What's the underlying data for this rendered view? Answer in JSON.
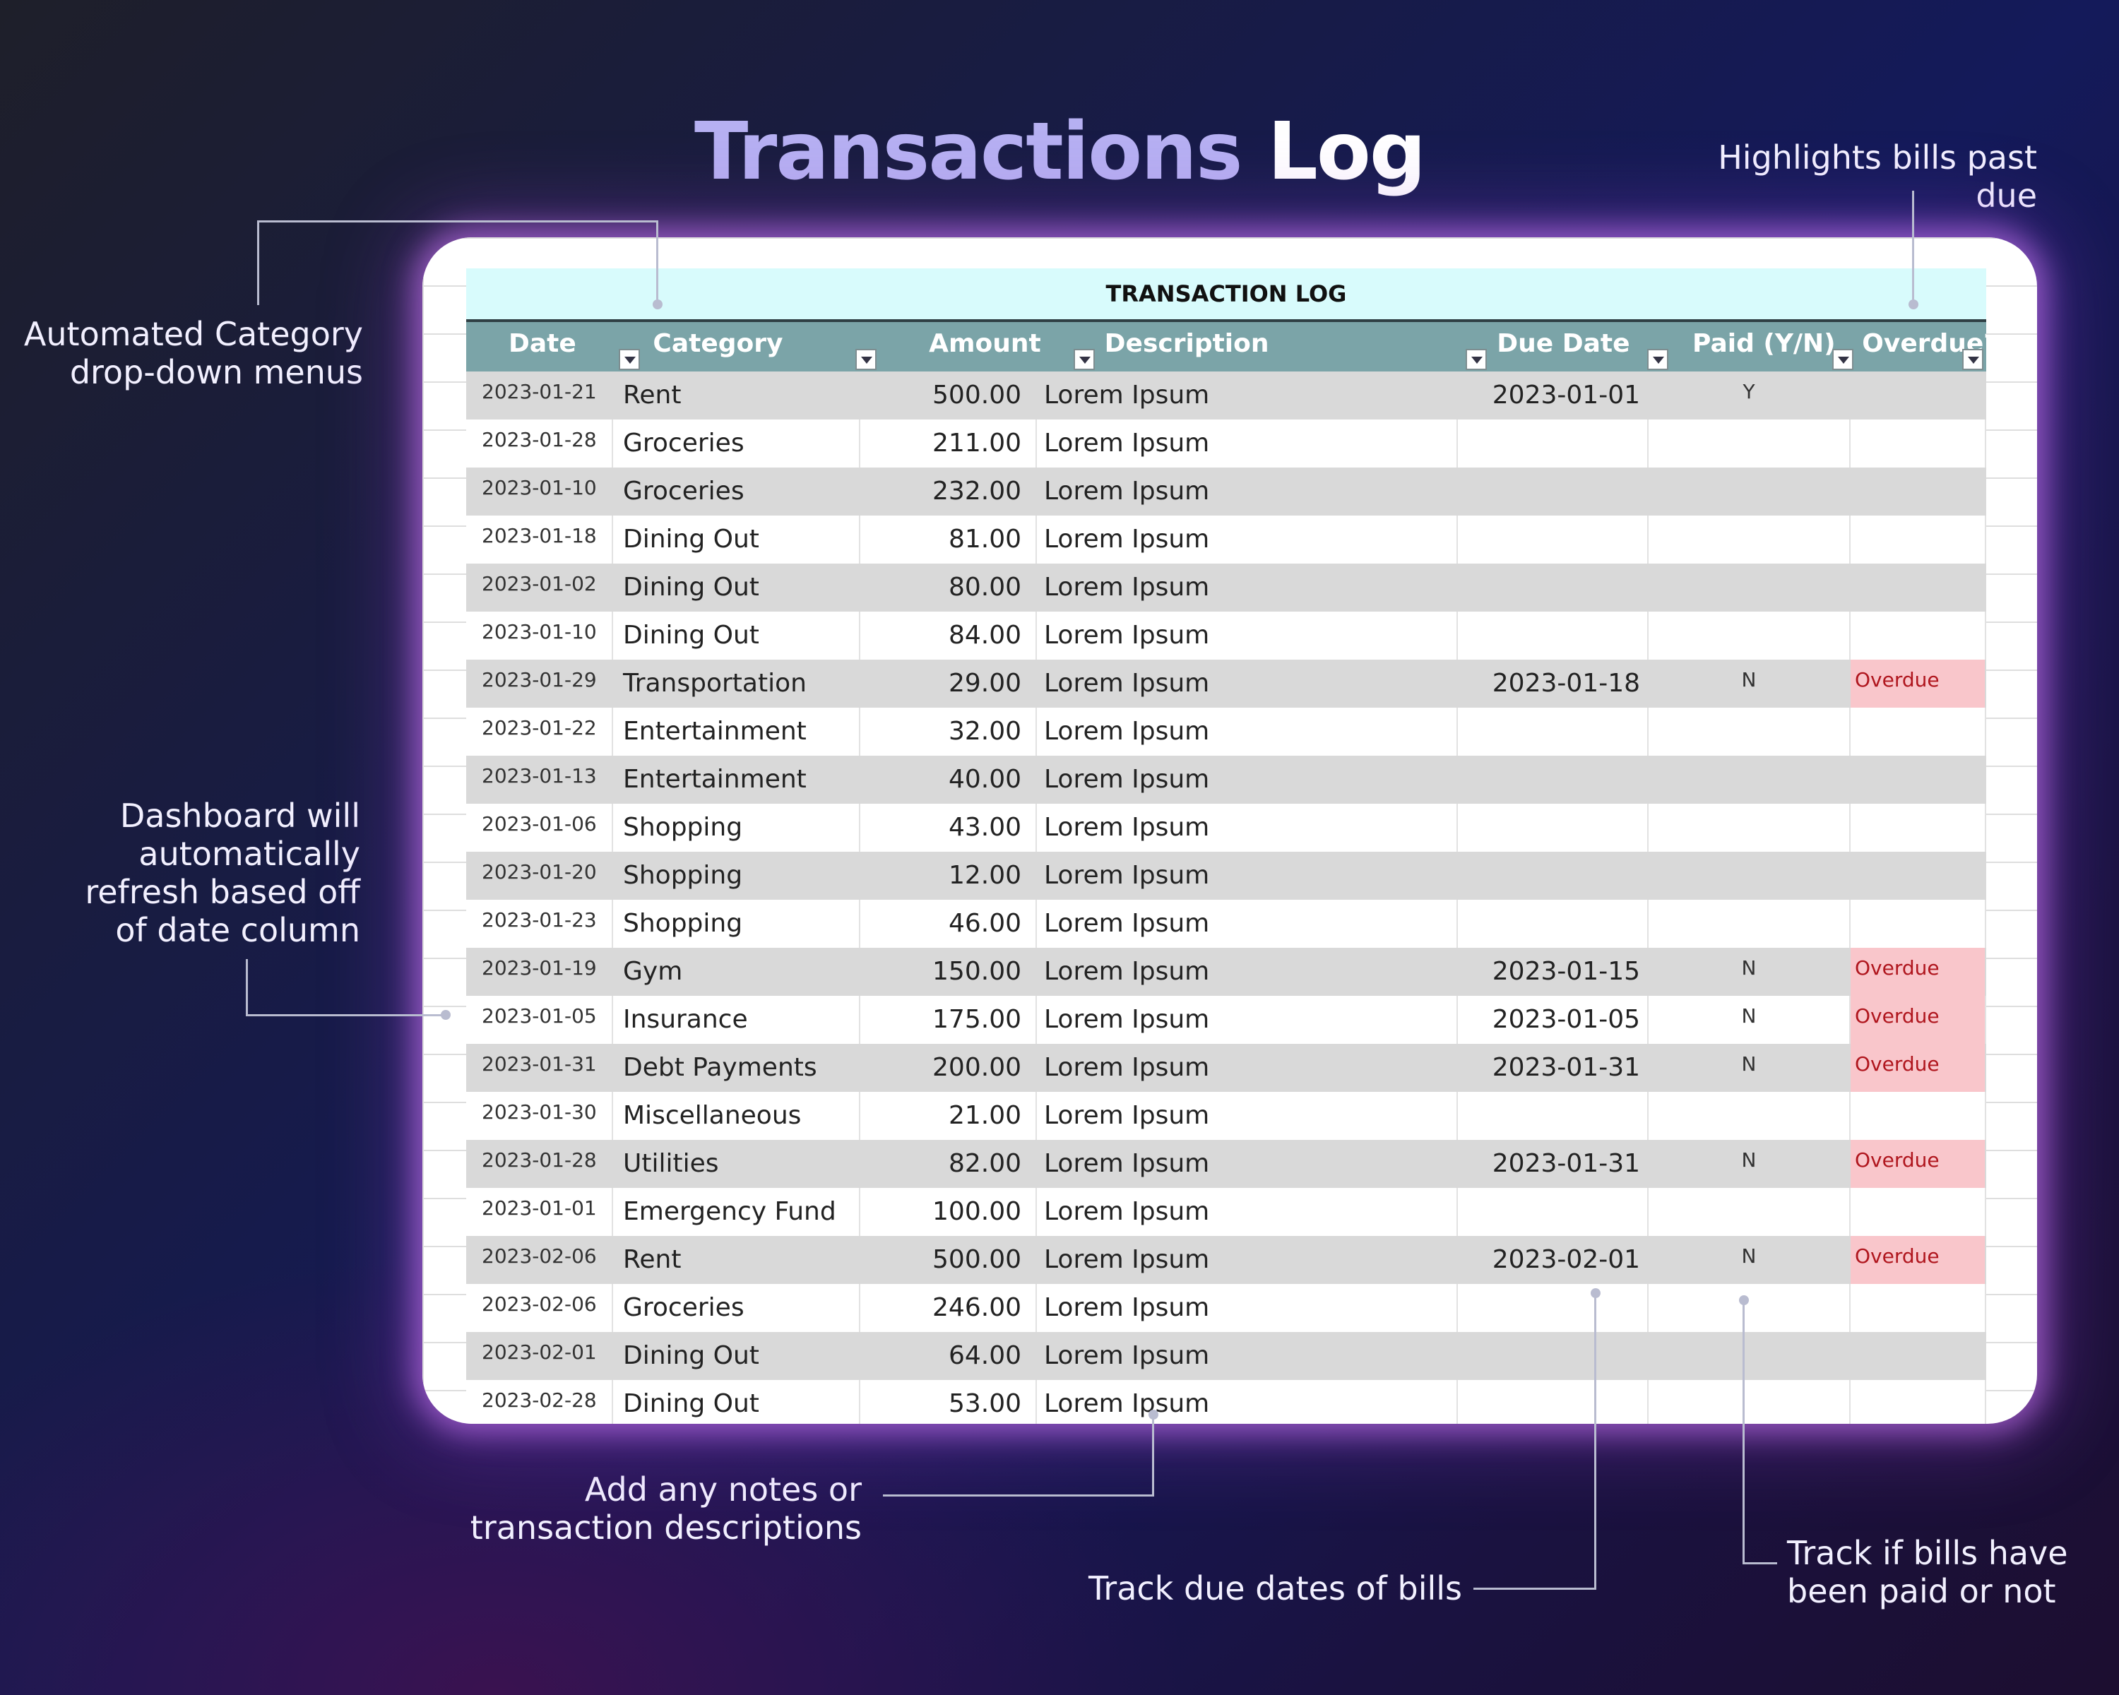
{
  "title": {
    "part1": "Transactions",
    "part2": "Log"
  },
  "sheet": {
    "banner": "TRANSACTION LOG",
    "columns": [
      "Date",
      "Category",
      "Amount",
      "Description",
      "Due Date",
      "Paid (Y/N)",
      "Overdue?"
    ],
    "rows": [
      {
        "date": "2023-01-21",
        "category": "Rent",
        "amount": "500.00",
        "description": "Lorem Ipsum",
        "due": "2023-01-01",
        "paid": "Y",
        "overdue": ""
      },
      {
        "date": "2023-01-28",
        "category": "Groceries",
        "amount": "211.00",
        "description": "Lorem Ipsum",
        "due": "",
        "paid": "",
        "overdue": ""
      },
      {
        "date": "2023-01-10",
        "category": "Groceries",
        "amount": "232.00",
        "description": "Lorem Ipsum",
        "due": "",
        "paid": "",
        "overdue": ""
      },
      {
        "date": "2023-01-18",
        "category": "Dining Out",
        "amount": "81.00",
        "description": "Lorem Ipsum",
        "due": "",
        "paid": "",
        "overdue": ""
      },
      {
        "date": "2023-01-02",
        "category": "Dining Out",
        "amount": "80.00",
        "description": "Lorem Ipsum",
        "due": "",
        "paid": "",
        "overdue": ""
      },
      {
        "date": "2023-01-10",
        "category": "Dining Out",
        "amount": "84.00",
        "description": "Lorem Ipsum",
        "due": "",
        "paid": "",
        "overdue": ""
      },
      {
        "date": "2023-01-29",
        "category": "Transportation",
        "amount": "29.00",
        "description": "Lorem Ipsum",
        "due": "2023-01-18",
        "paid": "N",
        "overdue": "Overdue"
      },
      {
        "date": "2023-01-22",
        "category": "Entertainment",
        "amount": "32.00",
        "description": "Lorem Ipsum",
        "due": "",
        "paid": "",
        "overdue": ""
      },
      {
        "date": "2023-01-13",
        "category": "Entertainment",
        "amount": "40.00",
        "description": "Lorem Ipsum",
        "due": "",
        "paid": "",
        "overdue": ""
      },
      {
        "date": "2023-01-06",
        "category": "Shopping",
        "amount": "43.00",
        "description": "Lorem Ipsum",
        "due": "",
        "paid": "",
        "overdue": ""
      },
      {
        "date": "2023-01-20",
        "category": "Shopping",
        "amount": "12.00",
        "description": "Lorem Ipsum",
        "due": "",
        "paid": "",
        "overdue": ""
      },
      {
        "date": "2023-01-23",
        "category": "Shopping",
        "amount": "46.00",
        "description": "Lorem Ipsum",
        "due": "",
        "paid": "",
        "overdue": ""
      },
      {
        "date": "2023-01-19",
        "category": "Gym",
        "amount": "150.00",
        "description": "Lorem Ipsum",
        "due": "2023-01-15",
        "paid": "N",
        "overdue": "Overdue"
      },
      {
        "date": "2023-01-05",
        "category": "Insurance",
        "amount": "175.00",
        "description": "Lorem Ipsum",
        "due": "2023-01-05",
        "paid": "N",
        "overdue": "Overdue"
      },
      {
        "date": "2023-01-31",
        "category": "Debt Payments",
        "amount": "200.00",
        "description": "Lorem Ipsum",
        "due": "2023-01-31",
        "paid": "N",
        "overdue": "Overdue"
      },
      {
        "date": "2023-01-30",
        "category": "Miscellaneous",
        "amount": "21.00",
        "description": "Lorem Ipsum",
        "due": "",
        "paid": "",
        "overdue": ""
      },
      {
        "date": "2023-01-28",
        "category": "Utilities",
        "amount": "82.00",
        "description": "Lorem Ipsum",
        "due": "2023-01-31",
        "paid": "N",
        "overdue": "Overdue"
      },
      {
        "date": "2023-01-01",
        "category": "Emergency Fund",
        "amount": "100.00",
        "description": "Lorem Ipsum",
        "due": "",
        "paid": "",
        "overdue": ""
      },
      {
        "date": "2023-02-06",
        "category": "Rent",
        "amount": "500.00",
        "description": "Lorem Ipsum",
        "due": "2023-02-01",
        "paid": "N",
        "overdue": "Overdue"
      },
      {
        "date": "2023-02-06",
        "category": "Groceries",
        "amount": "246.00",
        "description": "Lorem Ipsum",
        "due": "",
        "paid": "",
        "overdue": ""
      },
      {
        "date": "2023-02-01",
        "category": "Dining Out",
        "amount": "64.00",
        "description": "Lorem Ipsum",
        "due": "",
        "paid": "",
        "overdue": ""
      },
      {
        "date": "2023-02-28",
        "category": "Dining Out",
        "amount": "53.00",
        "description": "Lorem Ipsum",
        "due": "",
        "paid": "",
        "overdue": ""
      }
    ]
  },
  "annotations": {
    "category": [
      "Automated Category",
      "drop-down menus"
    ],
    "overdue": [
      "Highlights bills past due"
    ],
    "dashboard": [
      "Dashboard will",
      "automatically",
      "refresh based off",
      "of date column"
    ],
    "notes": [
      "Add any notes or",
      "transaction descriptions"
    ],
    "due": [
      "Track due dates of bills"
    ],
    "paid": [
      "Track if bills have",
      "been paid or not"
    ]
  },
  "colors": {
    "overdue_fill": "#f9c6cb",
    "overdue_text": "#b0161e",
    "header": "#7ba4a8",
    "banner": "#d8fbfc"
  }
}
